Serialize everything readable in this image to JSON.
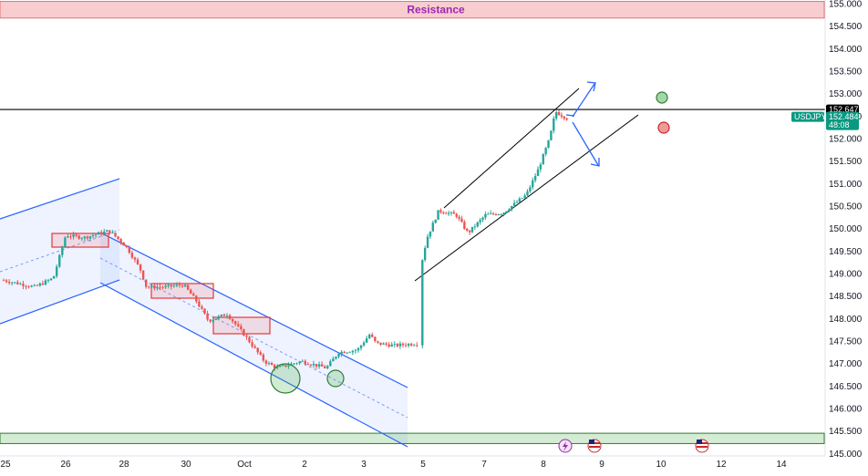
{
  "chart_data": {
    "type": "candlestick",
    "symbol": "USDJPY",
    "y_axis": {
      "min": 145.0,
      "max": 155.0,
      "ticks": [
        "155.000",
        "154.500",
        "154.000",
        "153.500",
        "153.000",
        "152.500",
        "152.000",
        "151.500",
        "151.000",
        "150.500",
        "150.000",
        "149.500",
        "149.000",
        "148.500",
        "148.000",
        "147.500",
        "147.000",
        "146.500",
        "146.000",
        "145.500",
        "145.000"
      ]
    },
    "x_axis": {
      "ticks": [
        "25",
        "26",
        "28",
        "30",
        "Oct",
        "2",
        "3",
        "5",
        "7",
        "8",
        "9",
        "10",
        "12",
        "14"
      ]
    },
    "horizontal_level": {
      "value": "152.647",
      "value_num": 152.647
    },
    "price_tag": {
      "symbol": "USDJPY",
      "price": "152.484",
      "price_num": 152.484,
      "countdown": "48:08"
    },
    "resistance": {
      "label": "Resistance",
      "low": 154.68,
      "high": 155.05
    },
    "support": {
      "low": 145.22,
      "high": 145.45
    },
    "close_path": [
      [
        0,
        148.85
      ],
      [
        0.5,
        148.7
      ],
      [
        0.8,
        148.9
      ],
      [
        1.0,
        149.85
      ],
      [
        1.3,
        149.8
      ],
      [
        1.7,
        149.95
      ],
      [
        1.9,
        149.7
      ],
      [
        2.0,
        149.55
      ],
      [
        2.2,
        149.1
      ],
      [
        2.3,
        148.7
      ],
      [
        2.6,
        148.7
      ],
      [
        2.9,
        148.75
      ],
      [
        3.1,
        148.4
      ],
      [
        3.3,
        147.95
      ],
      [
        3.6,
        148.1
      ],
      [
        3.9,
        147.6
      ],
      [
        4.2,
        147.05
      ],
      [
        4.4,
        146.9
      ],
      [
        4.8,
        147.05
      ],
      [
        5.2,
        146.9
      ],
      [
        5.4,
        147.25
      ],
      [
        5.7,
        147.3
      ],
      [
        5.9,
        147.65
      ],
      [
        6.0,
        147.45
      ],
      [
        6.3,
        147.4
      ],
      [
        6.7,
        147.45
      ],
      [
        7.0,
        149.2
      ],
      [
        7.1,
        149.8
      ],
      [
        7.3,
        150.4
      ],
      [
        7.6,
        150.3
      ],
      [
        7.8,
        149.9
      ],
      [
        8.1,
        150.3
      ],
      [
        8.4,
        150.35
      ],
      [
        8.8,
        150.75
      ],
      [
        9.0,
        151.3
      ],
      [
        9.2,
        152.0
      ],
      [
        9.3,
        152.6
      ],
      [
        9.5,
        152.45
      ]
    ],
    "markers": [
      {
        "name": "green-circle",
        "color": "#4caf50",
        "value": 152.9
      },
      {
        "name": "red-circle",
        "color": "#f44336",
        "value": 152.3
      }
    ],
    "event_icons": [
      "lightning-icon",
      "us-flag-icon",
      "us-flag-icon"
    ],
    "colors": {
      "up": "#26a69a",
      "down": "#ef5350",
      "channel": "#2962ff",
      "channel_fill": "#2962ff",
      "resistance_fill": "#f8cdd0",
      "support_fill": "#d4ecd4",
      "support_line": "#2e7d32",
      "level_line": "#000000",
      "tag_bg": "#089981",
      "level_tag_bg": "#000000"
    }
  }
}
